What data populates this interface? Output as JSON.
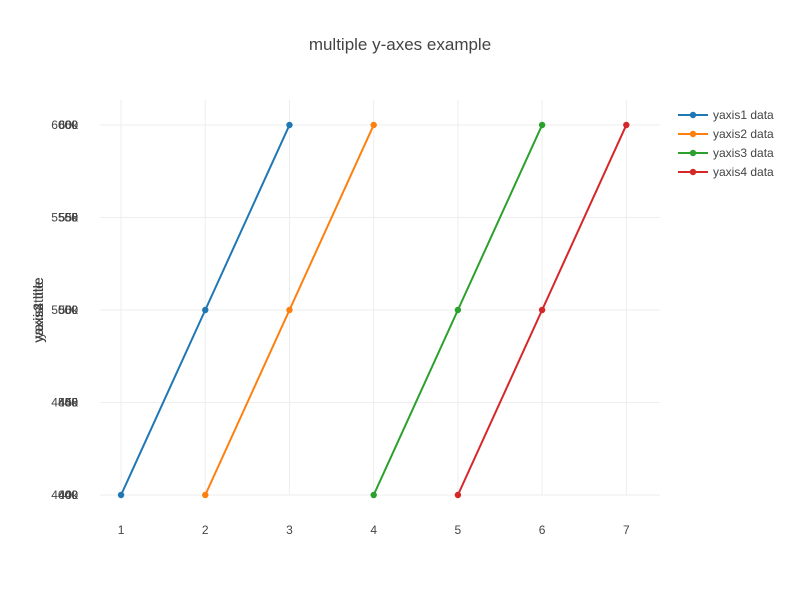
{
  "chart_data": {
    "type": "line",
    "title": "multiple y-axes example",
    "xlabel": "",
    "ylabel": "yaxis title",
    "y_axis_titles": [
      "yaxis title",
      "yaxis2 title",
      "yaxis3 title",
      "yaxis4 title"
    ],
    "x_ticks": [
      "1",
      "2",
      "3",
      "4",
      "5",
      "6",
      "7"
    ],
    "y_ticks": [
      [
        "40",
        "45",
        "50",
        "55",
        "60"
      ],
      [
        "400",
        "450",
        "500",
        "550",
        "600"
      ],
      [
        "4000",
        "4500",
        "5000",
        "5500",
        "6000"
      ],
      [
        "40k",
        "45k",
        "50k",
        "55k",
        "60k"
      ]
    ],
    "xlim": [
      0.75,
      7.4
    ],
    "ylim": [
      40,
      60
    ],
    "grid": true,
    "legend_position": "top-right",
    "series": [
      {
        "name": "yaxis1 data",
        "color": "#1f77b4",
        "x": [
          1,
          2,
          3
        ],
        "y": [
          40,
          50,
          60
        ]
      },
      {
        "name": "yaxis2 data",
        "color": "#ff7f0e",
        "x": [
          2,
          3,
          4
        ],
        "y": [
          400,
          500,
          600
        ]
      },
      {
        "name": "yaxis3 data",
        "color": "#2ca02c",
        "x": [
          4,
          5,
          6
        ],
        "y": [
          40000,
          50000,
          60000
        ]
      },
      {
        "name": "yaxis4 data",
        "color": "#d62728",
        "x": [
          5,
          6,
          7
        ],
        "y": [
          400000,
          500000,
          600000
        ]
      }
    ],
    "series_ylim": [
      [
        40,
        60
      ],
      [
        400,
        600
      ],
      [
        40000,
        60000
      ],
      [
        400000,
        600000
      ]
    ]
  }
}
